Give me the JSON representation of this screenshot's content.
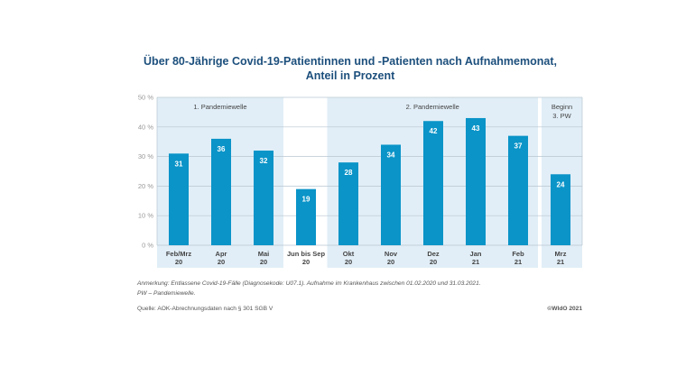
{
  "chart_data": {
    "type": "bar",
    "title": "Über 80-Jährige Covid-19-Patientinnen und -Patienten nach Aufnahmemonat,",
    "subtitle": "Anteil in Prozent",
    "categories": [
      [
        "Feb/Mrz",
        "20"
      ],
      [
        "Apr",
        "20"
      ],
      [
        "Mai",
        "20"
      ],
      [
        "Jun bis Sep",
        "20"
      ],
      [
        "Okt",
        "20"
      ],
      [
        "Nov",
        "20"
      ],
      [
        "Dez",
        "20"
      ],
      [
        "Jan",
        "21"
      ],
      [
        "Feb",
        "21"
      ],
      [
        "Mrz",
        "21"
      ]
    ],
    "values": [
      31,
      36,
      32,
      19,
      28,
      34,
      42,
      43,
      37,
      24
    ],
    "ylim": [
      0,
      50
    ],
    "yticks": [
      "0 %",
      "10 %",
      "20 %",
      "30 %",
      "40 %",
      "50 %"
    ],
    "grid": true,
    "bands": [
      {
        "label": [
          "1. Pandemiewelle"
        ],
        "from": 0,
        "to": 2
      },
      {
        "label": [
          "2. Pandemiewelle"
        ],
        "from": 4,
        "to": 8
      },
      {
        "label": [
          "Beginn",
          "3. PW"
        ],
        "from": 9,
        "to": 9
      }
    ],
    "colors": {
      "bar": "#0a94c8",
      "band": "#e1eef7",
      "title": "#1c4f7c",
      "text": "#555555"
    }
  },
  "notes": {
    "line1": "Anmerkung: Entlassene Covid-19-Fälle (Diagnosekode: U07.1). Aufnahme im Krankenhaus zwischen 01.02.2020 und 31.03.2021.",
    "line2": "PW – Pandemiewelle.",
    "source": "Quelle: AOK-Abrechnungsdaten nach § 301 SGB V",
    "copyright": "©WIdO 2021"
  }
}
